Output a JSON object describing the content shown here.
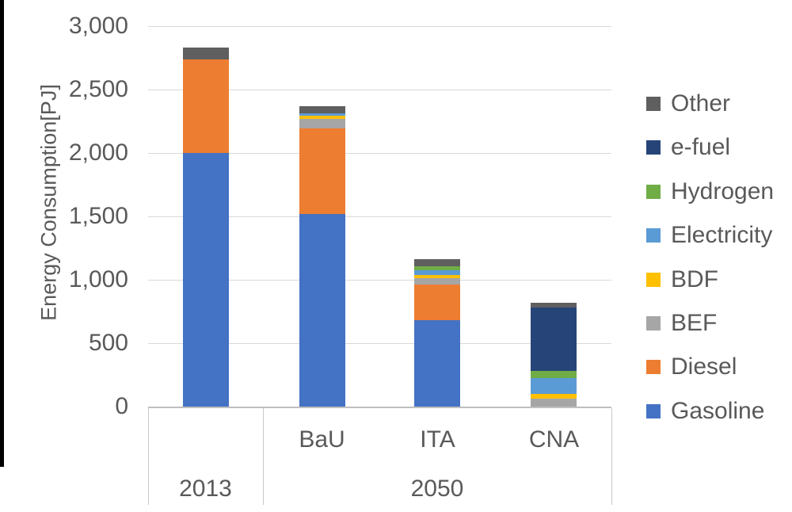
{
  "chart_data": {
    "type": "bar",
    "subtype": "stacked-column",
    "title": "",
    "ylabel": "Energy Consumption[PJ]",
    "ylim": [
      0,
      3000
    ],
    "ytick_interval": 500,
    "yticks": [
      {
        "value": 0,
        "label": "0"
      },
      {
        "value": 500,
        "label": "500"
      },
      {
        "value": 1000,
        "label": "1,000"
      },
      {
        "value": 1500,
        "label": "1,500"
      },
      {
        "value": 2000,
        "label": "2,000"
      },
      {
        "value": 2500,
        "label": "2,500"
      },
      {
        "value": 3000,
        "label": "3,000"
      }
    ],
    "grid": true,
    "categories": [
      "2013-total",
      "BaU",
      "ITA",
      "CNA"
    ],
    "category_axis": {
      "row1_labels": [
        "",
        "BaU",
        "ITA",
        "CNA"
      ],
      "groups": [
        {
          "label": "2013",
          "span": [
            0,
            0
          ]
        },
        {
          "label": "2050",
          "span": [
            1,
            3
          ]
        }
      ]
    },
    "series_bottom_to_top": [
      {
        "name": "Gasoline",
        "color": "#4472c4",
        "values": [
          2000,
          1520,
          680,
          0
        ]
      },
      {
        "name": "Diesel",
        "color": "#ed7d31",
        "values": [
          740,
          675,
          285,
          0
        ]
      },
      {
        "name": "BEF",
        "color": "#a6a6a6",
        "values": [
          0,
          75,
          50,
          60
        ]
      },
      {
        "name": "BDF",
        "color": "#ffc000",
        "values": [
          0,
          25,
          20,
          40
        ]
      },
      {
        "name": "Electricity",
        "color": "#5b9bd5",
        "values": [
          0,
          15,
          40,
          125
        ]
      },
      {
        "name": "Hydrogen",
        "color": "#70ad47",
        "values": [
          0,
          0,
          30,
          55
        ]
      },
      {
        "name": "e-fuel",
        "color": "#264478",
        "values": [
          0,
          0,
          0,
          500
        ]
      },
      {
        "name": "Other",
        "color": "#5f5f5f",
        "values": [
          90,
          60,
          55,
          40
        ]
      }
    ],
    "totals": [
      2830,
      2370,
      1160,
      820
    ],
    "legend_position": "right",
    "legend_top_to_bottom": [
      {
        "name": "Other",
        "color": "#5f5f5f"
      },
      {
        "name": "e-fuel",
        "color": "#264478"
      },
      {
        "name": "Hydrogen",
        "color": "#70ad47"
      },
      {
        "name": "Electricity",
        "color": "#5b9bd5"
      },
      {
        "name": "BDF",
        "color": "#ffc000"
      },
      {
        "name": "BEF",
        "color": "#a6a6a6"
      },
      {
        "name": "Diesel",
        "color": "#ed7d31"
      },
      {
        "name": "Gasoline",
        "color": "#4472c4"
      }
    ],
    "text_color": "#595959",
    "gridline_color": "#d9d9d9"
  }
}
